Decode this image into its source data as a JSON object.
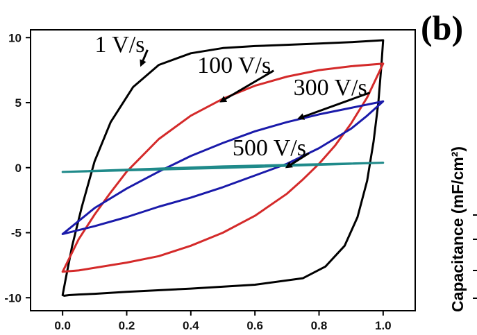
{
  "panel_label": "(b)",
  "side_axis_label": "Capacitance (mF/cm²)",
  "chart_data": {
    "type": "line",
    "title": "",
    "xlabel": "",
    "ylabel": "",
    "xlim": [
      -0.1,
      1.1
    ],
    "ylim": [
      -11,
      10.6
    ],
    "xticks": [
      0.0,
      0.2,
      0.4,
      0.6,
      0.8,
      1.0
    ],
    "xtick_labels": [
      "0.0",
      "0.2",
      "0.4",
      "0.6",
      "0.8",
      "1.0"
    ],
    "yticks": [
      -10,
      -5,
      0,
      5,
      10
    ],
    "ytick_labels": [
      "-10",
      "-5",
      "0",
      "5",
      "10"
    ],
    "grid": false,
    "series": [
      {
        "name": "1 V/s",
        "color": "#000000",
        "x": [
          0.0,
          0.01,
          0.03,
          0.06,
          0.1,
          0.15,
          0.22,
          0.3,
          0.4,
          0.5,
          0.6,
          0.7,
          0.8,
          0.9,
          1.0,
          0.995,
          0.985,
          0.97,
          0.95,
          0.92,
          0.88,
          0.82,
          0.75,
          0.6,
          0.4,
          0.2,
          0.1,
          0.05,
          0.02,
          0.005,
          0.0
        ],
        "y": [
          -9.8,
          -8.5,
          -6.0,
          -3.0,
          0.5,
          3.5,
          6.2,
          7.9,
          8.8,
          9.2,
          9.35,
          9.45,
          9.55,
          9.65,
          9.8,
          8.0,
          5.0,
          2.0,
          -1.0,
          -3.8,
          -6.0,
          -7.6,
          -8.5,
          -9.0,
          -9.3,
          -9.55,
          -9.7,
          -9.75,
          -9.8,
          -9.85,
          -9.8
        ]
      },
      {
        "name": "100 V/s",
        "color": "#d42a2a",
        "x": [
          0.0,
          0.05,
          0.1,
          0.15,
          0.2,
          0.3,
          0.4,
          0.5,
          0.6,
          0.7,
          0.8,
          0.9,
          1.0,
          0.95,
          0.9,
          0.85,
          0.8,
          0.75,
          0.7,
          0.6,
          0.5,
          0.4,
          0.3,
          0.2,
          0.1,
          0.05,
          0.0
        ],
        "y": [
          -8.0,
          -5.5,
          -3.6,
          -1.9,
          -0.3,
          2.2,
          4.0,
          5.3,
          6.3,
          7.0,
          7.5,
          7.8,
          8.0,
          5.4,
          3.4,
          1.7,
          0.3,
          -0.9,
          -2.0,
          -3.7,
          -5.0,
          -6.0,
          -6.8,
          -7.3,
          -7.7,
          -7.9,
          -8.0
        ]
      },
      {
        "name": "300 V/s",
        "color": "#1a1aaa",
        "x": [
          0.0,
          0.1,
          0.2,
          0.3,
          0.4,
          0.5,
          0.6,
          0.7,
          0.8,
          0.9,
          1.0,
          0.95,
          0.9,
          0.8,
          0.7,
          0.6,
          0.5,
          0.4,
          0.3,
          0.2,
          0.1,
          0.0
        ],
        "y": [
          -5.1,
          -3.1,
          -1.6,
          -0.3,
          0.9,
          1.9,
          2.8,
          3.5,
          4.1,
          4.6,
          5.1,
          4.0,
          3.0,
          1.5,
          0.3,
          -0.6,
          -1.5,
          -2.3,
          -3.0,
          -3.8,
          -4.5,
          -5.1
        ]
      },
      {
        "name": "500 V/s",
        "color": "#1f8a8a",
        "x": [
          0.0,
          0.5,
          1.0,
          0.5,
          0.0
        ],
        "y": [
          -0.33,
          0.1,
          0.38,
          -0.02,
          -0.33
        ]
      }
    ],
    "annotations": [
      {
        "text": "1 V/s",
        "x": 0.1,
        "y": 8.9,
        "arrow_to": [
          0.245,
          7.9
        ]
      },
      {
        "text": "100 V/s",
        "x": 0.42,
        "y": 7.3,
        "arrow_to": [
          0.495,
          5.1
        ]
      },
      {
        "text": "300 V/s",
        "x": 0.72,
        "y": 5.6,
        "arrow_to": [
          0.738,
          3.8
        ]
      },
      {
        "text": "500 V/s",
        "x": 0.53,
        "y": 0.95,
        "arrow_to": [
          0.7,
          0.05
        ]
      }
    ]
  }
}
